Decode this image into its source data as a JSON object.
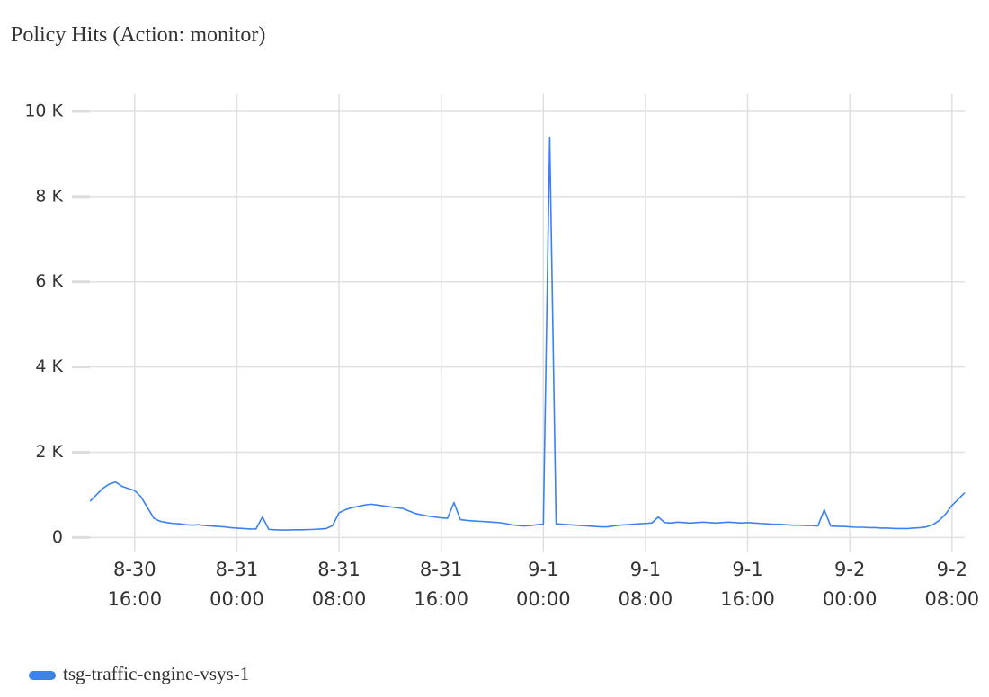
{
  "chart_data": {
    "type": "line",
    "title": "Policy Hits (Action: monitor)",
    "x": [
      "8-30 12:30",
      "8-30 13:00",
      "8-30 13:30",
      "8-30 14:00",
      "8-30 14:30",
      "8-30 15:00",
      "8-30 15:30",
      "8-30 16:00",
      "8-30 16:30",
      "8-30 17:00",
      "8-30 17:30",
      "8-30 18:00",
      "8-30 18:30",
      "8-30 19:00",
      "8-30 19:30",
      "8-30 20:00",
      "8-30 20:30",
      "8-30 21:00",
      "8-30 21:30",
      "8-30 22:00",
      "8-30 22:30",
      "8-30 23:00",
      "8-30 23:30",
      "8-31 00:00",
      "8-31 00:30",
      "8-31 01:00",
      "8-31 01:30",
      "8-31 02:00",
      "8-31 02:30",
      "8-31 03:00",
      "8-31 03:30",
      "8-31 04:00",
      "8-31 04:30",
      "8-31 05:00",
      "8-31 05:30",
      "8-31 06:00",
      "8-31 06:30",
      "8-31 07:00",
      "8-31 07:30",
      "8-31 08:00",
      "8-31 08:30",
      "8-31 09:00",
      "8-31 09:30",
      "8-31 10:00",
      "8-31 10:30",
      "8-31 11:00",
      "8-31 11:30",
      "8-31 12:00",
      "8-31 12:30",
      "8-31 13:00",
      "8-31 13:30",
      "8-31 14:00",
      "8-31 14:30",
      "8-31 15:00",
      "8-31 15:30",
      "8-31 16:00",
      "8-31 16:30",
      "8-31 17:00",
      "8-31 17:30",
      "8-31 18:00",
      "8-31 18:30",
      "8-31 19:00",
      "8-31 19:30",
      "8-31 20:00",
      "8-31 20:30",
      "8-31 21:00",
      "8-31 21:30",
      "8-31 22:00",
      "8-31 22:30",
      "8-31 23:00",
      "8-31 23:30",
      "9-1 00:00",
      "9-1 00:30",
      "9-1 01:00",
      "9-1 01:30",
      "9-1 02:00",
      "9-1 02:30",
      "9-1 03:00",
      "9-1 03:30",
      "9-1 04:00",
      "9-1 04:30",
      "9-1 05:00",
      "9-1 05:30",
      "9-1 06:00",
      "9-1 06:30",
      "9-1 07:00",
      "9-1 07:30",
      "9-1 08:00",
      "9-1 08:30",
      "9-1 09:00",
      "9-1 09:30",
      "9-1 10:00",
      "9-1 10:30",
      "9-1 11:00",
      "9-1 11:30",
      "9-1 12:00",
      "9-1 12:30",
      "9-1 13:00",
      "9-1 13:30",
      "9-1 14:00",
      "9-1 14:30",
      "9-1 15:00",
      "9-1 15:30",
      "9-1 16:00",
      "9-1 16:30",
      "9-1 17:00",
      "9-1 17:30",
      "9-1 18:00",
      "9-1 18:30",
      "9-1 19:00",
      "9-1 19:30",
      "9-1 20:00",
      "9-1 20:30",
      "9-1 21:00",
      "9-1 21:30",
      "9-1 22:00",
      "9-1 22:30",
      "9-1 23:00",
      "9-1 23:30",
      "9-2 00:00",
      "9-2 00:30",
      "9-2 01:00",
      "9-2 01:30",
      "9-2 02:00",
      "9-2 02:30",
      "9-2 03:00",
      "9-2 03:30",
      "9-2 04:00",
      "9-2 04:30",
      "9-2 05:00",
      "9-2 05:30",
      "9-2 06:00",
      "9-2 06:30",
      "9-2 07:00",
      "9-2 07:30",
      "9-2 08:00",
      "9-2 08:30",
      "9-2 09:00"
    ],
    "series": [
      {
        "name": "tsg-traffic-engine-vsys-1",
        "color": "#3b82f0",
        "values": [
          850,
          1000,
          1150,
          1250,
          1300,
          1200,
          1150,
          1100,
          950,
          700,
          450,
          380,
          350,
          330,
          320,
          300,
          290,
          300,
          280,
          270,
          260,
          250,
          230,
          220,
          210,
          200,
          200,
          480,
          190,
          180,
          175,
          175,
          180,
          180,
          185,
          190,
          200,
          210,
          280,
          580,
          650,
          700,
          730,
          760,
          780,
          760,
          740,
          720,
          700,
          680,
          620,
          560,
          530,
          500,
          480,
          460,
          450,
          820,
          420,
          400,
          390,
          380,
          370,
          360,
          350,
          330,
          300,
          280,
          270,
          280,
          300,
          310,
          9400,
          320,
          310,
          300,
          290,
          280,
          270,
          260,
          250,
          250,
          270,
          290,
          300,
          310,
          320,
          330,
          340,
          480,
          350,
          340,
          360,
          350,
          340,
          350,
          360,
          350,
          340,
          350,
          360,
          350,
          340,
          350,
          340,
          330,
          320,
          310,
          310,
          300,
          290,
          290,
          280,
          280,
          270,
          650,
          270,
          260,
          260,
          250,
          240,
          240,
          230,
          230,
          220,
          220,
          210,
          210,
          210,
          220,
          230,
          250,
          300,
          400,
          550,
          750,
          900,
          1050
        ]
      }
    ],
    "xlim": [
      "8-30 11:05",
      "9-2 09:00"
    ],
    "xticks": [
      {
        "value": "8-30 16:00",
        "label": "8-30\n16:00"
      },
      {
        "value": "8-31 00:00",
        "label": "8-31\n00:00"
      },
      {
        "value": "8-31 08:00",
        "label": "8-31\n08:00"
      },
      {
        "value": "8-31 16:00",
        "label": "8-31\n16:00"
      },
      {
        "value": "9-1 00:00",
        "label": "9-1\n00:00"
      },
      {
        "value": "9-1 08:00",
        "label": "9-1\n08:00"
      },
      {
        "value": "9-1 16:00",
        "label": "9-1\n16:00"
      },
      {
        "value": "9-2 00:00",
        "label": "9-2\n00:00"
      },
      {
        "value": "9-2 08:00",
        "label": "9-2\n08:00"
      }
    ],
    "ylim": [
      -350,
      10400
    ],
    "yticks": [
      0,
      {
        "value": 2000,
        "label": "2 K"
      },
      {
        "value": 4000,
        "label": "4 K"
      },
      {
        "value": 6000,
        "label": "6 K"
      },
      {
        "value": 8000,
        "label": "8 K"
      },
      {
        "value": 10000,
        "label": "10 K"
      }
    ],
    "grid": true
  }
}
